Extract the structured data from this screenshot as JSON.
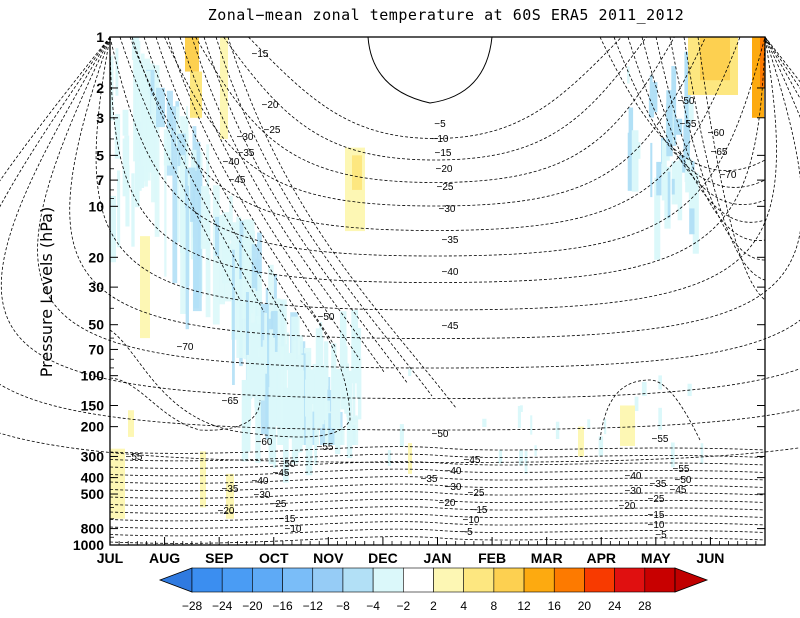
{
  "chart_data": {
    "type": "contour",
    "title": "Zonal−mean zonal temperature at 60S ERA5 2011_2012",
    "ylabel": "Pressure Levels (hPa)",
    "xlabel": "",
    "y_scale": "log",
    "y_ticks": [
      "1",
      "2",
      "3",
      "5",
      "7",
      "10",
      "20",
      "30",
      "50",
      "70",
      "100",
      "150",
      "200",
      "300",
      "400",
      "500",
      "800",
      "1000"
    ],
    "y_tick_values": [
      1,
      2,
      3,
      5,
      7,
      10,
      20,
      30,
      50,
      70,
      100,
      150,
      200,
      300,
      400,
      500,
      800,
      1000
    ],
    "x_ticks": [
      "JUL",
      "AUG",
      "SEP",
      "OCT",
      "NOV",
      "DEC",
      "JAN",
      "FEB",
      "MAR",
      "APR",
      "MAY",
      "JUN"
    ],
    "ylim": [
      1000,
      1
    ],
    "colorbar": {
      "labels": [
        "−28",
        "−24",
        "−20",
        "−16",
        "−12",
        "−8",
        "−4",
        "−2",
        "2",
        "4",
        "8",
        "12",
        "16",
        "20",
        "24",
        "28"
      ],
      "colors": [
        "#3b8ef0",
        "#4a9cf4",
        "#5eaaf6",
        "#7abdf8",
        "#96ccf6",
        "#b2e0f6",
        "#dbf8fa",
        "#ffffff",
        "#fdf7b4",
        "#fde780",
        "#fdd050",
        "#fdaa10",
        "#fd7a00",
        "#f83a00",
        "#e01010",
        "#c80000"
      ],
      "left_arrow_color": "#2f7ae0",
      "right_arrow_color": "#c00000"
    },
    "contour_labels": [
      {
        "text": "−15",
        "month": "SEP"
      },
      {
        "text": "−20",
        "month": "SEP"
      },
      {
        "text": "−25",
        "month": "SEP"
      },
      {
        "text": "−30",
        "month": "SEP"
      },
      {
        "text": "−35",
        "month": "SEP"
      },
      {
        "text": "−40",
        "month": "AUG"
      },
      {
        "text": "−45",
        "month": "AUG"
      },
      {
        "text": "−50",
        "month": "OCT"
      },
      {
        "text": "−65",
        "month": "SEP"
      },
      {
        "text": "−70",
        "month": "JUL"
      },
      {
        "text": "−60",
        "month": "OCT"
      },
      {
        "text": "−55",
        "month": "NOV"
      },
      {
        "text": "−5",
        "month": "JAN"
      },
      {
        "text": "−10",
        "month": "JAN"
      },
      {
        "text": "−15",
        "month": "JAN"
      },
      {
        "text": "−20",
        "month": "JAN"
      },
      {
        "text": "−25",
        "month": "JAN"
      },
      {
        "text": "−30",
        "month": "JAN"
      },
      {
        "text": "−35",
        "month": "JAN"
      },
      {
        "text": "−40",
        "month": "JAN"
      },
      {
        "text": "−45",
        "month": "JAN"
      },
      {
        "text": "−50",
        "month": "DEC"
      },
      {
        "text": "−50",
        "month": "MAY"
      },
      {
        "text": "−55",
        "month": "MAY"
      },
      {
        "text": "−60",
        "month": "JUN"
      },
      {
        "text": "−65",
        "month": "JUN"
      },
      {
        "text": "−70",
        "month": "JUN"
      },
      {
        "text": "−55",
        "month": "MAY"
      },
      {
        "text": "−55",
        "month": "JUL"
      },
      {
        "text": "−50",
        "month": "OCT"
      },
      {
        "text": "−45",
        "month": "OCT"
      },
      {
        "text": "−40",
        "month": "SEP"
      },
      {
        "text": "−35",
        "month": "SEP"
      },
      {
        "text": "−30",
        "month": "SEP"
      },
      {
        "text": "−25",
        "month": "OCT"
      },
      {
        "text": "−20",
        "month": "SEP"
      },
      {
        "text": "−15",
        "month": "OCT"
      },
      {
        "text": "−10",
        "month": "OCT"
      },
      {
        "text": "−45",
        "month": "JAN"
      },
      {
        "text": "−40",
        "month": "JAN"
      },
      {
        "text": "−35",
        "month": "JAN"
      },
      {
        "text": "−30",
        "month": "JAN"
      },
      {
        "text": "−25",
        "month": "FEB"
      },
      {
        "text": "−20",
        "month": "JAN"
      },
      {
        "text": "−15",
        "month": "FEB"
      },
      {
        "text": "−10",
        "month": "FEB"
      },
      {
        "text": "−5",
        "month": "FEB"
      },
      {
        "text": "−55",
        "month": "MAY"
      },
      {
        "text": "−50",
        "month": "MAY"
      },
      {
        "text": "−45",
        "month": "MAY"
      },
      {
        "text": "−40",
        "month": "APR"
      },
      {
        "text": "−35",
        "month": "MAY"
      },
      {
        "text": "−30",
        "month": "APR"
      },
      {
        "text": "−25",
        "month": "MAY"
      },
      {
        "text": "−20",
        "month": "APR"
      },
      {
        "text": "−15",
        "month": "MAY"
      },
      {
        "text": "−10",
        "month": "MAY"
      },
      {
        "text": "−5",
        "month": "MAY"
      }
    ]
  }
}
